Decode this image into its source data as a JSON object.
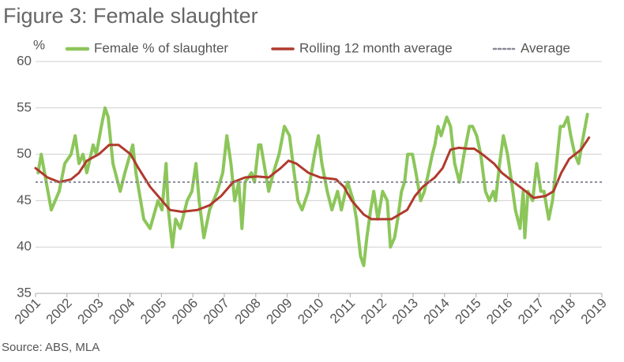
{
  "chart_data": {
    "type": "line",
    "title": "Figure 3: Female slaughter",
    "y_label": "%",
    "source": "Source: ABS, MLA",
    "xlim": [
      2001,
      2019
    ],
    "xticks": [
      2001,
      2002,
      2003,
      2004,
      2005,
      2006,
      2007,
      2008,
      2009,
      2010,
      2011,
      2012,
      2013,
      2014,
      2015,
      2016,
      2017,
      2018,
      2019
    ],
    "ylim": [
      35,
      60
    ],
    "yticks": [
      35,
      40,
      45,
      50,
      55,
      60
    ],
    "grid": true,
    "series": [
      {
        "name": "Female % of slaughter",
        "color": "#8cc65a",
        "x": [
          2001.08,
          2001.18,
          2001.5,
          2001.75,
          2001.93,
          2002.13,
          2002.26,
          2002.38,
          2002.51,
          2002.63,
          2002.83,
          2002.93,
          2003.09,
          2003.21,
          2003.31,
          2003.46,
          2003.69,
          2003.84,
          2004.09,
          2004.19,
          2004.44,
          2004.64,
          2004.89,
          2005.02,
          2005.15,
          2005.22,
          2005.35,
          2005.45,
          2005.6,
          2005.82,
          2005.97,
          2006.1,
          2006.2,
          2006.35,
          2006.53,
          2006.78,
          2006.95,
          2007.08,
          2007.21,
          2007.33,
          2007.46,
          2007.56,
          2007.66,
          2007.86,
          2007.96,
          2008.09,
          2008.16,
          2008.31,
          2008.41,
          2008.56,
          2008.74,
          2008.91,
          2009.07,
          2009.22,
          2009.34,
          2009.47,
          2009.67,
          2009.87,
          2009.99,
          2010.1,
          2010.27,
          2010.42,
          2010.6,
          2010.72,
          2010.92,
          2011.1,
          2011.2,
          2011.33,
          2011.43,
          2011.53,
          2011.65,
          2011.75,
          2011.88,
          2012.03,
          2012.18,
          2012.28,
          2012.41,
          2012.51,
          2012.63,
          2012.73,
          2012.83,
          2012.98,
          2013.09,
          2013.24,
          2013.36,
          2013.49,
          2013.61,
          2013.69,
          2013.79,
          2013.89,
          2014.07,
          2014.19,
          2014.32,
          2014.47,
          2014.62,
          2014.79,
          2014.89,
          2015.02,
          2015.15,
          2015.3,
          2015.42,
          2015.55,
          2015.62,
          2015.75,
          2015.87,
          2016.0,
          2016.13,
          2016.25,
          2016.4,
          2016.5,
          2016.55,
          2016.65,
          2016.8,
          2016.93,
          2017.06,
          2017.16,
          2017.31,
          2017.43,
          2017.56,
          2017.68,
          2017.78,
          2017.91,
          2018.01,
          2018.14,
          2018.26,
          2018.36,
          2018.54
        ],
        "values": [
          48,
          50,
          44,
          46,
          49,
          50,
          52,
          49,
          50,
          48,
          51,
          50,
          53,
          55,
          54,
          49,
          46,
          48,
          51,
          48,
          43,
          42,
          45,
          44,
          49,
          44,
          40,
          43,
          42,
          45,
          46,
          49,
          45,
          41,
          44,
          46,
          48,
          52,
          49,
          45,
          47,
          42,
          47,
          48,
          47,
          51,
          51,
          48,
          46,
          48,
          50,
          53,
          52,
          48,
          45,
          44,
          46,
          50,
          52,
          49,
          46,
          44,
          46,
          44,
          47,
          45,
          43,
          39,
          38,
          41,
          44,
          46,
          43,
          46,
          45,
          40,
          41,
          43,
          46,
          47,
          50,
          50,
          48,
          45,
          46,
          48,
          50,
          51,
          53,
          52,
          54,
          53,
          49,
          47,
          50,
          53,
          53,
          52,
          50,
          46,
          45,
          46,
          45,
          49,
          52,
          50,
          47,
          44,
          42,
          46,
          41,
          46,
          45,
          49,
          46,
          46,
          43,
          45,
          49,
          53,
          53,
          54,
          52,
          50,
          49,
          51,
          54.3
        ]
      },
      {
        "name": "Rolling 12 month average",
        "color": "#b03a2e",
        "x": [
          2001.0,
          2001.38,
          2001.75,
          2002.13,
          2002.38,
          2002.63,
          2003.01,
          2003.34,
          2003.64,
          2004.02,
          2004.27,
          2004.64,
          2005.02,
          2005.27,
          2005.65,
          2006.15,
          2006.53,
          2006.9,
          2007.28,
          2007.66,
          2008.04,
          2008.41,
          2008.79,
          2009.04,
          2009.29,
          2009.67,
          2010.05,
          2010.55,
          2010.8,
          2011.05,
          2011.43,
          2011.68,
          2012.06,
          2012.31,
          2012.56,
          2012.81,
          2013.06,
          2013.31,
          2013.69,
          2013.94,
          2014.19,
          2014.44,
          2014.74,
          2014.94,
          2015.2,
          2015.57,
          2015.82,
          2016.2,
          2016.58,
          2016.83,
          2017.21,
          2017.46,
          2017.71,
          2017.96,
          2018.34,
          2018.59
        ],
        "values": [
          48.5,
          47.5,
          47,
          47.3,
          48,
          49.3,
          50,
          51,
          51,
          50,
          48.5,
          46.5,
          45,
          44,
          43.8,
          44,
          44.5,
          45.5,
          47,
          47.5,
          47.6,
          47.5,
          48.5,
          49.3,
          49,
          48,
          47.5,
          47.3,
          46.5,
          45,
          43.5,
          43,
          43,
          43,
          43.5,
          44,
          45.5,
          46.5,
          47.5,
          48.5,
          50.5,
          50.7,
          50.6,
          50.6,
          50,
          49,
          48,
          47,
          46,
          45.3,
          45.5,
          46,
          48,
          49.5,
          50.5,
          51.8
        ]
      },
      {
        "name": "Average",
        "color": "#8a8a9a",
        "style": "dotted",
        "values": [
          47
        ]
      }
    ]
  }
}
